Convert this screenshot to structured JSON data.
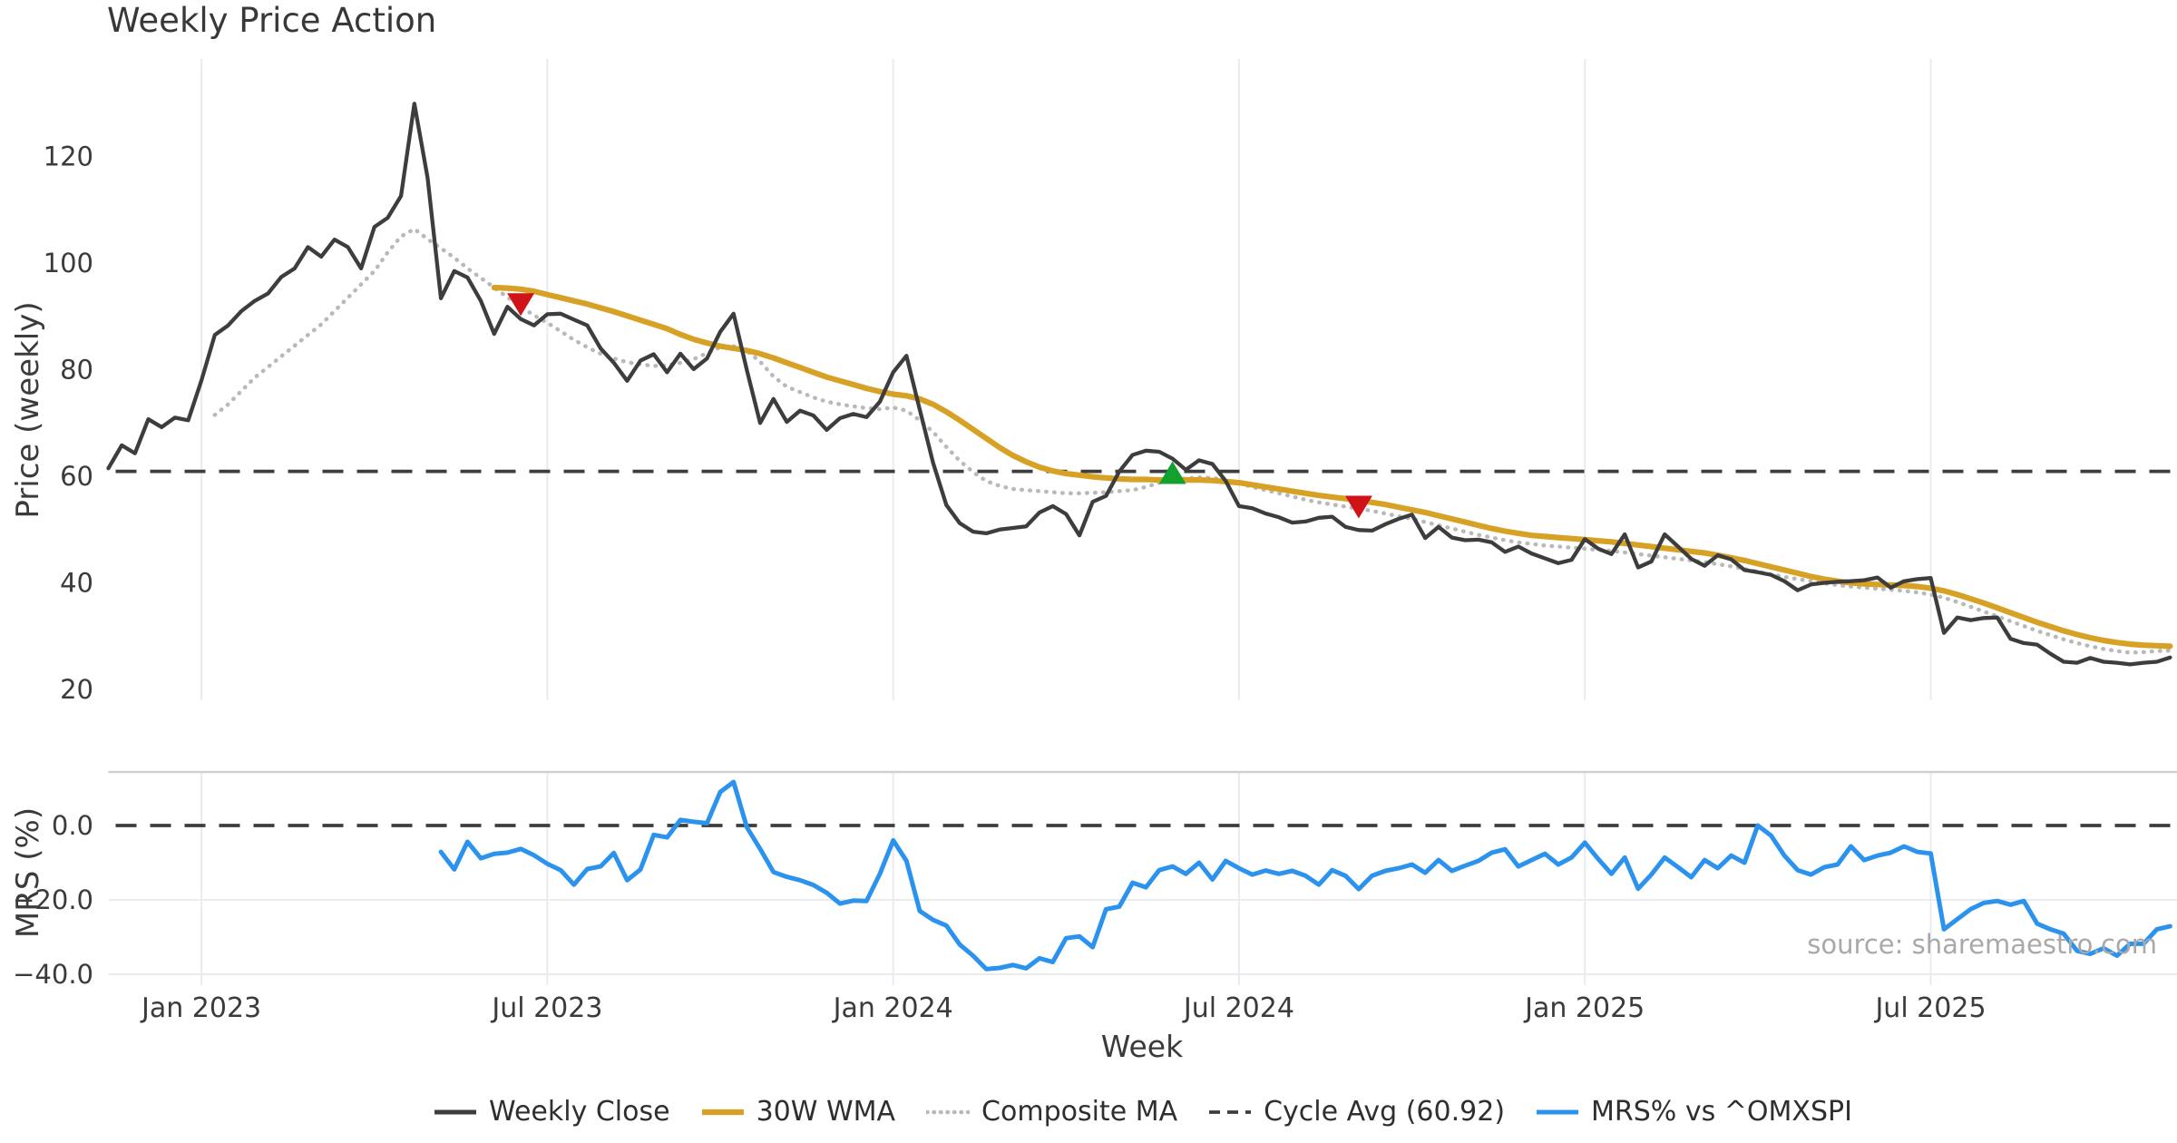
{
  "title": "Weekly Price Action",
  "source_note": "source: sharemaestro.com",
  "colors": {
    "text": "#3b3b3b",
    "grid": "#e9ebf1",
    "spine": "#cfcfd4",
    "weekly_close": "#3d3d3d",
    "wma": "#d7a125",
    "composite": "#b9b9b9",
    "cycle_avg": "#3d3d3d",
    "mrs": "#2b93ee",
    "sell_marker": "#cf1318",
    "buy_marker": "#12a12e",
    "source_text": "#a9a9a9"
  },
  "x_axis": {
    "label": "Week"
  },
  "price_panel": {
    "ylabel": "Price (weekly)",
    "ticks": [
      {
        "label": "120",
        "value": 120
      },
      {
        "label": "100",
        "value": 100
      },
      {
        "label": "80",
        "value": 80
      },
      {
        "label": "60",
        "value": 60
      },
      {
        "label": "40",
        "value": 40
      },
      {
        "label": "20",
        "value": 20
      }
    ],
    "ylim": [
      18,
      138
    ]
  },
  "mrs_panel": {
    "ylabel": "MRS (%)",
    "ticks": [
      {
        "label": "0.0",
        "value": 0
      },
      {
        "label": "−20.0",
        "value": -20
      },
      {
        "label": "−40.0",
        "value": -40
      }
    ],
    "ylim": [
      -43,
      14
    ]
  },
  "legend": {
    "items": [
      {
        "label": "Weekly Close",
        "key": "weekly_close",
        "style": "solid"
      },
      {
        "label": "30W WMA",
        "key": "wma",
        "style": "solid"
      },
      {
        "label": "Composite MA",
        "key": "composite",
        "style": "dotted"
      },
      {
        "label": "Cycle Avg (60.92)",
        "key": "cycle_avg",
        "style": "dashed"
      },
      {
        "label": "MRS% vs ^OMXSPI",
        "key": "mrs",
        "style": "solid"
      }
    ]
  },
  "chart_data": {
    "type": "line",
    "x_unit": "week_index",
    "n_points": 156,
    "cycle_avg": 60.92,
    "grid": "vertical",
    "x_ticks": [
      {
        "label": "Jan 2023",
        "index": 7
      },
      {
        "label": "Jul 2023",
        "index": 33
      },
      {
        "label": "Jan 2024",
        "index": 59
      },
      {
        "label": "Jul 2024",
        "index": 85
      },
      {
        "label": "Jan 2025",
        "index": 111
      },
      {
        "label": "Jul 2025",
        "index": 137
      }
    ],
    "series": [
      {
        "name": "Weekly Close",
        "panel": "price",
        "style": "solid",
        "color_key": "weekly_close",
        "start_index": 0,
        "values": [
          61.5,
          65.8,
          64.3,
          70.7,
          69.2,
          71.0,
          70.5,
          78.0,
          86.5,
          88.3,
          91.0,
          92.9,
          94.3,
          97.4,
          99.0,
          103.0,
          101.2,
          104.4,
          103.0,
          99.0,
          106.8,
          108.5,
          112.6,
          129.9,
          116.0,
          93.4,
          98.5,
          97.3,
          92.9,
          86.7,
          91.8,
          89.5,
          88.3,
          90.4,
          90.5,
          89.4,
          88.3,
          84.0,
          81.3,
          77.9,
          81.7,
          82.9,
          79.5,
          83.0,
          80.1,
          82.1,
          87.1,
          90.5,
          79.9,
          70.0,
          74.5,
          70.2,
          72.3,
          71.4,
          68.7,
          70.9,
          71.7,
          71.1,
          74.0,
          79.5,
          82.6,
          72.5,
          62.5,
          54.6,
          51.2,
          49.6,
          49.3,
          50.0,
          50.3,
          50.6,
          53.2,
          54.4,
          52.9,
          48.9,
          55.2,
          56.3,
          60.9,
          64.0,
          64.8,
          64.6,
          63.3,
          61.2,
          63.0,
          62.3,
          59.1,
          54.4,
          54.0,
          53.0,
          52.3,
          51.3,
          51.5,
          52.2,
          52.4,
          50.5,
          49.9,
          49.8,
          51.0,
          52.0,
          52.8,
          48.4,
          50.5,
          48.5,
          48.0,
          48.1,
          47.6,
          45.8,
          46.8,
          45.5,
          44.6,
          43.7,
          44.3,
          48.2,
          46.4,
          45.4,
          49.1,
          42.9,
          44.0,
          49.1,
          46.8,
          44.5,
          43.2,
          45.2,
          44.4,
          42.4,
          42.0,
          41.5,
          40.3,
          38.6,
          39.7,
          40.0,
          40.2,
          40.3,
          40.5,
          41.0,
          39.1,
          40.3,
          40.7,
          40.9,
          30.6,
          33.5,
          33.0,
          33.4,
          33.5,
          29.5,
          28.7,
          28.4,
          26.7,
          25.2,
          25.0,
          25.9,
          25.2,
          25.0,
          24.7,
          25.0,
          25.2,
          26.0
        ]
      },
      {
        "name": "30W WMA",
        "panel": "price",
        "style": "solid",
        "color_key": "wma",
        "start_index": 29,
        "values": [
          95.4,
          95.3,
          95.1,
          94.7,
          94.1,
          93.5,
          92.9,
          92.3,
          91.6,
          90.9,
          90.1,
          89.3,
          88.5,
          87.7,
          86.6,
          85.7,
          85.0,
          84.4,
          84.0,
          83.6,
          83.0,
          82.2,
          81.3,
          80.4,
          79.5,
          78.6,
          77.9,
          77.2,
          76.5,
          75.9,
          75.4,
          75.1,
          74.5,
          73.5,
          72.1,
          70.5,
          68.8,
          67.1,
          65.4,
          63.9,
          62.7,
          61.7,
          61.0,
          60.5,
          60.2,
          59.9,
          59.7,
          59.5,
          59.4,
          59.4,
          59.3,
          59.3,
          59.3,
          59.3,
          59.2,
          59.0,
          58.8,
          58.4,
          58.0,
          57.6,
          57.2,
          56.8,
          56.4,
          56.1,
          55.8,
          55.5,
          55.1,
          54.7,
          54.2,
          53.7,
          53.2,
          52.6,
          52.0,
          51.4,
          50.8,
          50.2,
          49.7,
          49.3,
          48.9,
          48.7,
          48.5,
          48.3,
          48.1,
          47.9,
          47.7,
          47.4,
          47.1,
          46.8,
          46.5,
          46.2,
          45.9,
          45.6,
          45.2,
          44.7,
          44.2,
          43.6,
          43.0,
          42.4,
          41.8,
          41.2,
          40.7,
          40.3,
          40.0,
          39.8,
          39.7,
          39.6,
          39.5,
          39.3,
          39.0,
          38.5,
          37.8,
          37.0,
          36.2,
          35.3,
          34.4,
          33.5,
          32.6,
          31.8,
          31.0,
          30.3,
          29.7,
          29.2,
          28.8,
          28.5,
          28.3,
          28.2,
          28.1
        ]
      },
      {
        "name": "Composite MA",
        "panel": "price",
        "style": "dotted",
        "color_key": "composite",
        "start_index": 8,
        "values": [
          71.5,
          73.5,
          76.0,
          78.5,
          80.5,
          82.5,
          84.5,
          86.5,
          88.5,
          91.0,
          93.5,
          96.0,
          98.5,
          102.0,
          105.0,
          106.4,
          104.5,
          102.8,
          101.0,
          99.0,
          97.2,
          95.4,
          93.6,
          91.8,
          90.2,
          88.8,
          87.2,
          85.6,
          84.2,
          83.0,
          82.1,
          81.4,
          81.0,
          80.7,
          80.8,
          81.3,
          82.0,
          83.1,
          84.2,
          84.4,
          83.5,
          81.5,
          78.7,
          76.8,
          75.8,
          74.8,
          74.0,
          73.5,
          73.1,
          72.8,
          72.6,
          72.9,
          72.3,
          70.5,
          68.3,
          65.5,
          62.9,
          60.8,
          59.1,
          58.2,
          57.6,
          57.4,
          57.2,
          57.0,
          56.8,
          56.8,
          56.9,
          57.0,
          57.2,
          57.4,
          58.0,
          58.8,
          59.3,
          59.6,
          59.8,
          59.7,
          59.3,
          58.7,
          58.0,
          57.4,
          56.8,
          56.2,
          55.6,
          55.1,
          54.7,
          54.3,
          53.9,
          53.5,
          53.0,
          52.5,
          52.0,
          51.4,
          50.8,
          50.2,
          49.6,
          49.0,
          48.5,
          48.0,
          47.6,
          47.3,
          47.0,
          46.8,
          46.6,
          46.4,
          46.2,
          46.0,
          45.7,
          45.4,
          45.1,
          44.8,
          44.5,
          44.2,
          43.9,
          43.5,
          43.1,
          42.6,
          42.1,
          41.6,
          41.1,
          40.7,
          40.3,
          39.9,
          39.6,
          39.3,
          39.1,
          38.9,
          38.7,
          38.5,
          38.2,
          37.8,
          37.2,
          36.4,
          35.5,
          34.6,
          33.7,
          32.8,
          31.9,
          31.0,
          30.2,
          29.4,
          28.7,
          28.1,
          27.6,
          27.2,
          26.9,
          27.0,
          27.2,
          27.3
        ]
      },
      {
        "name": "MRS% vs ^OMXSPI",
        "panel": "mrs",
        "style": "solid",
        "color_key": "mrs",
        "start_index": 25,
        "values": [
          -7.1,
          -11.8,
          -4.4,
          -8.8,
          -7.6,
          -7.3,
          -6.3,
          -8.0,
          -10.3,
          -12.0,
          -15.9,
          -11.7,
          -11.0,
          -7.4,
          -14.7,
          -11.8,
          -2.5,
          -3.2,
          1.5,
          1.0,
          0.6,
          9.0,
          11.7,
          -0.5,
          -6.3,
          -12.5,
          -13.8,
          -14.7,
          -16.0,
          -18.1,
          -21.0,
          -20.2,
          -20.3,
          -13.0,
          -4.0,
          -9.5,
          -23.0,
          -25.4,
          -26.9,
          -32.0,
          -35.0,
          -38.6,
          -38.3,
          -37.5,
          -38.4,
          -35.7,
          -36.7,
          -30.3,
          -29.8,
          -32.7,
          -22.5,
          -21.8,
          -15.4,
          -16.6,
          -12.0,
          -11.0,
          -13.0,
          -10.0,
          -14.5,
          -9.5,
          -11.5,
          -13.2,
          -12.1,
          -13.0,
          -12.2,
          -13.5,
          -15.9,
          -12.0,
          -13.5,
          -17.1,
          -13.5,
          -12.2,
          -11.5,
          -10.5,
          -12.7,
          -9.3,
          -12.2,
          -10.8,
          -9.5,
          -7.3,
          -6.4,
          -11.0,
          -9.3,
          -7.6,
          -10.5,
          -8.6,
          -4.6,
          -9.0,
          -13.0,
          -8.6,
          -17.0,
          -13.2,
          -8.6,
          -11.2,
          -13.9,
          -9.3,
          -11.5,
          -8.1,
          -10.0,
          0.0,
          -2.7,
          -8.1,
          -12.0,
          -13.2,
          -11.2,
          -10.5,
          -5.6,
          -9.3,
          -8.1,
          -7.3,
          -5.6,
          -7.1,
          -7.5,
          -27.9,
          -25.2,
          -22.5,
          -20.8,
          -20.3,
          -21.3,
          -20.3,
          -26.4,
          -27.9,
          -29.1,
          -33.7,
          -34.5,
          -33.0,
          -35.0,
          -31.8,
          -31.8,
          -27.9,
          -27.1
        ]
      }
    ],
    "signals": {
      "sell": [
        {
          "index": 31,
          "price": 92.3
        },
        {
          "index": 94,
          "price": 54.3
        }
      ],
      "buy": [
        {
          "index": 80,
          "price": 60.6
        }
      ]
    }
  }
}
